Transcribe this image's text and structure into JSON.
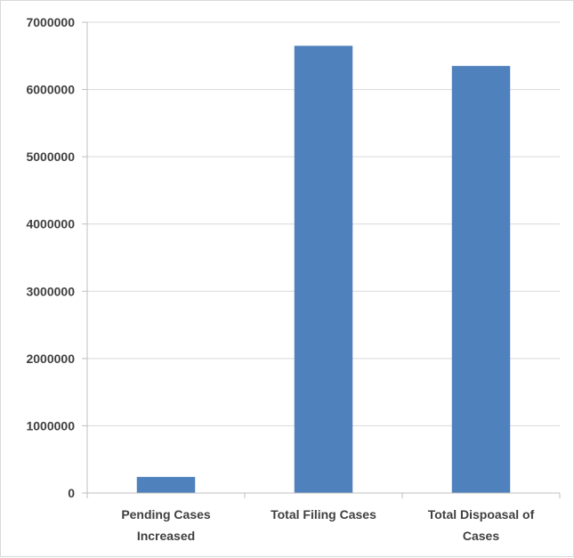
{
  "chart_data": {
    "type": "bar",
    "categories": [
      [
        "Pending Cases",
        "Increased"
      ],
      [
        "Total Filing Cases"
      ],
      [
        "Total Dispoasal of",
        "Cases"
      ]
    ],
    "values": [
      240000,
      6650000,
      6350000
    ],
    "ylim": [
      0,
      7000000
    ],
    "yticks": [
      "0",
      "1000000",
      "2000000",
      "3000000",
      "4000000",
      "5000000",
      "6000000",
      "7000000"
    ],
    "grid": true,
    "legend": "none",
    "bar_color": "#4f81bd",
    "grid_color": "#d9d9d9",
    "axis_color": "#bfbfbf"
  }
}
